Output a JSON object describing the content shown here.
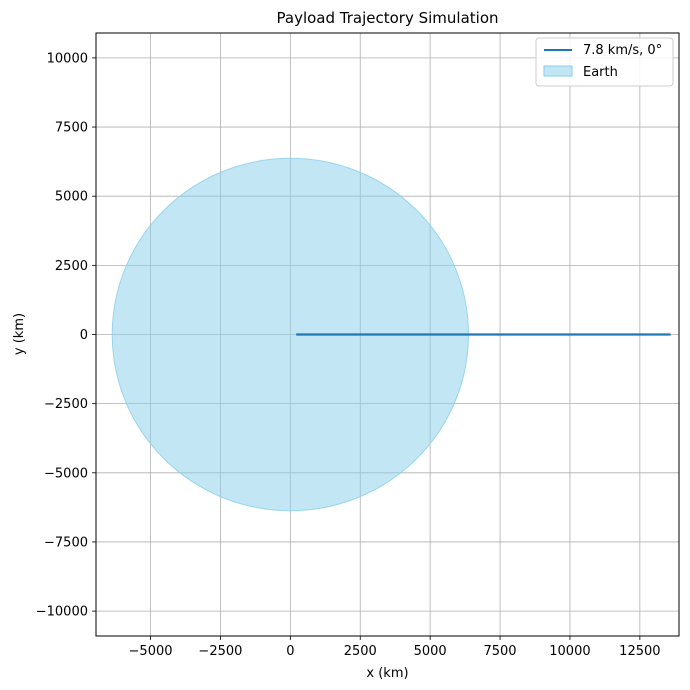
{
  "chart_data": {
    "type": "line",
    "title": "Payload Trajectory Simulation",
    "xlabel": "x (km)",
    "ylabel": "y (km)",
    "xlim": [
      -6950,
      13900
    ],
    "ylim": [
      -10900,
      10900
    ],
    "xticks": [
      -5000,
      -2500,
      0,
      2500,
      5000,
      7500,
      10000,
      12500
    ],
    "xtick_labels": [
      "−5000",
      "−2500",
      "0",
      "2500",
      "5000",
      "7500",
      "10000",
      "12500"
    ],
    "yticks": [
      10000,
      7500,
      5000,
      2500,
      0,
      -2500,
      -5000,
      -7500,
      -10000
    ],
    "ytick_labels": [
      "10000",
      "7500",
      "5000",
      "2500",
      "0",
      "−2500",
      "−5000",
      "−7500",
      "−10000"
    ],
    "grid": true,
    "legend_position": "top-right",
    "series": [
      {
        "name": "7.8 km/s, 0°",
        "kind": "line",
        "color": "#1f77b4",
        "x": [
          210,
          13600
        ],
        "y": [
          0,
          0
        ]
      }
    ],
    "earth": {
      "name": "Earth",
      "kind": "filled-circle",
      "center": [
        0,
        0
      ],
      "radius": 6371,
      "fill": "#87ceeb",
      "fill_opacity": 0.5,
      "edge": "#87ceeb"
    }
  }
}
